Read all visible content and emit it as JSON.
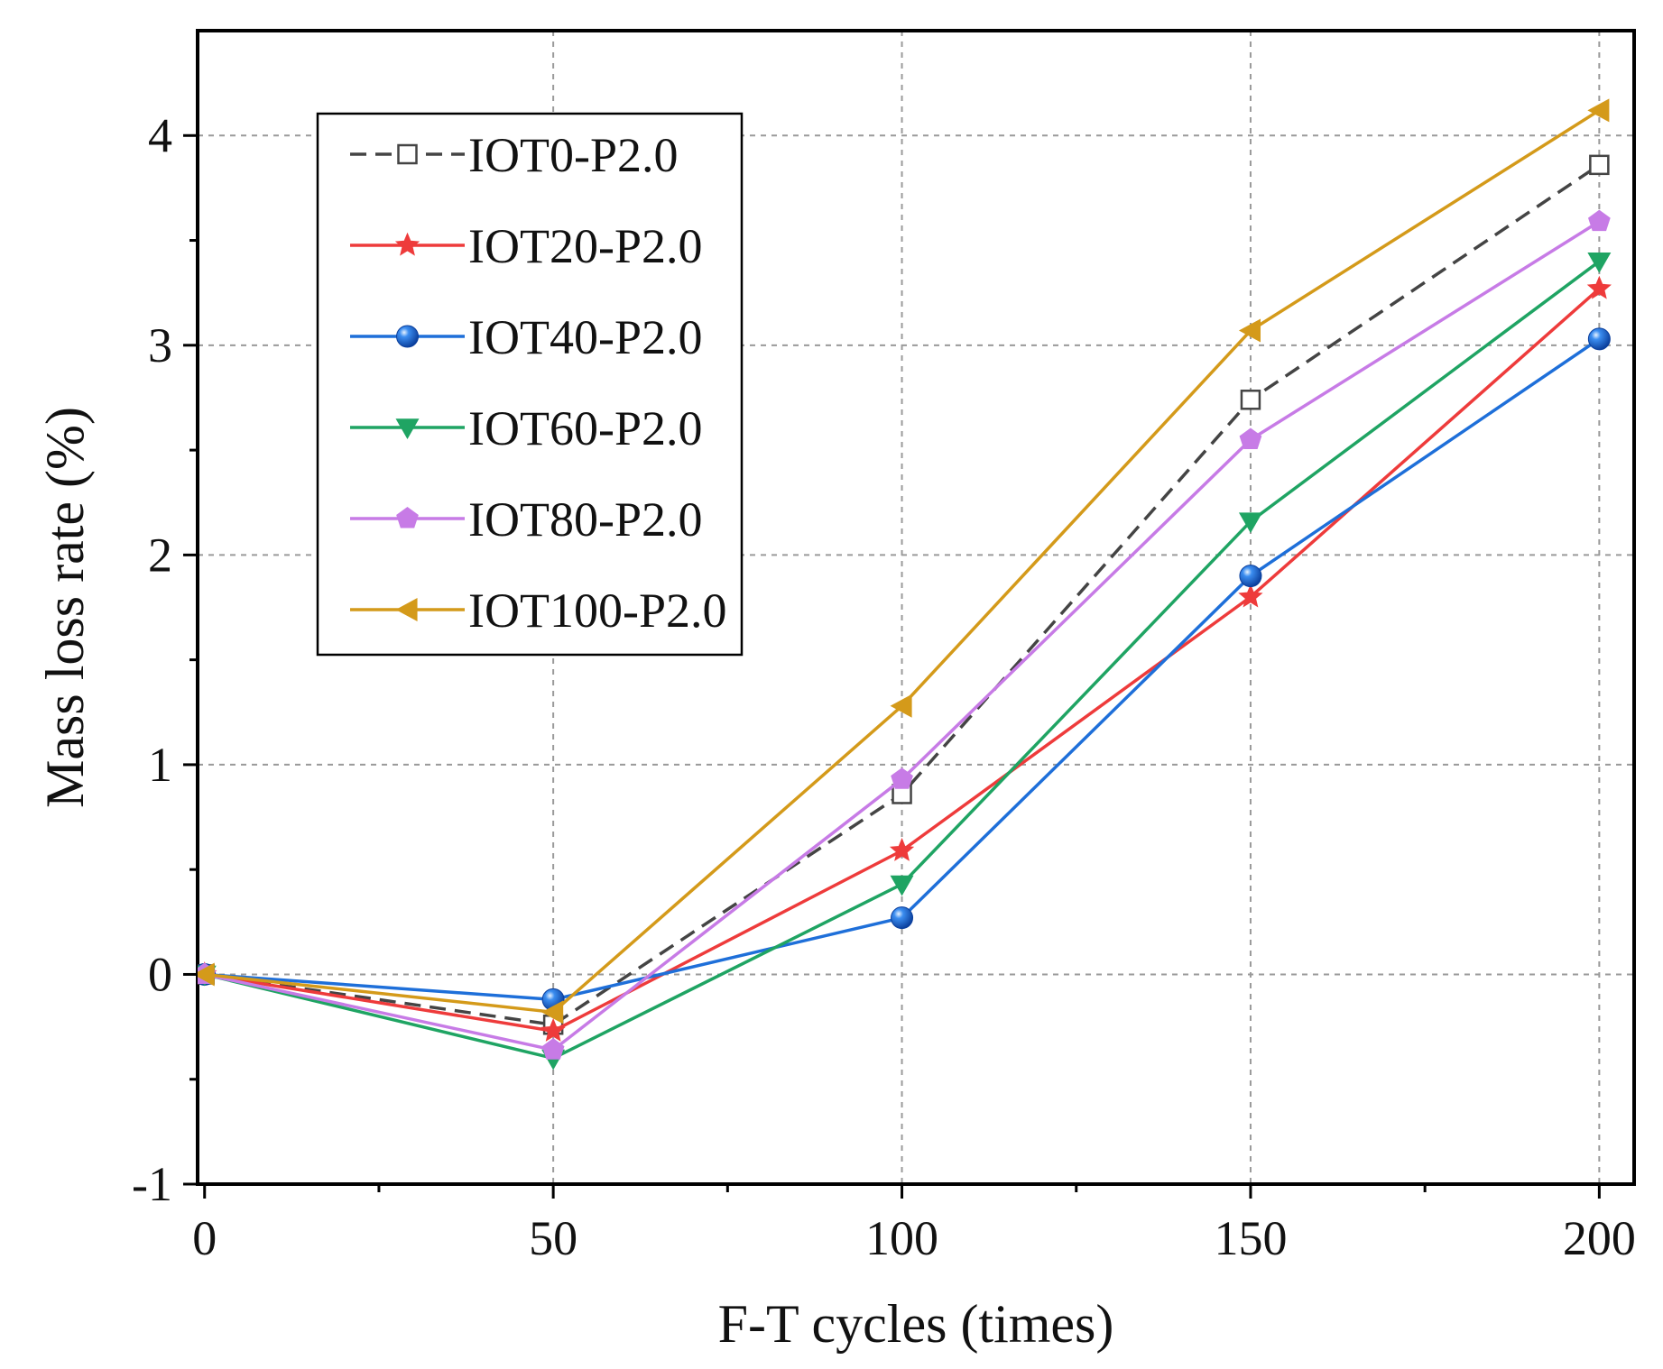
{
  "chart_data": {
    "type": "line",
    "title": "",
    "xlabel": "F-T cycles (times)",
    "ylabel": "Mass loss rate (%)",
    "x": [
      0,
      50,
      100,
      150,
      200
    ],
    "xlim": [
      -1,
      205
    ],
    "ylim": [
      -1,
      4.5
    ],
    "xticks": [
      0,
      50,
      100,
      150,
      200
    ],
    "xtick_labels": [
      "0",
      "50",
      "100",
      "150",
      "200"
    ],
    "yticks": [
      -1,
      0,
      1,
      2,
      3,
      4
    ],
    "ytick_labels": [
      "-1",
      "0",
      "1",
      "2",
      "3",
      "4"
    ],
    "grid": true,
    "legend_position": "top-left",
    "series": [
      {
        "name": "IOT0-P2.0",
        "values": [
          0,
          -0.24,
          0.86,
          2.74,
          3.86
        ],
        "color": "#444444",
        "marker": "square-open",
        "dashed": true
      },
      {
        "name": "IOT20-P2.0",
        "values": [
          0,
          -0.27,
          0.59,
          1.8,
          3.27
        ],
        "color": "#ee3b3b",
        "marker": "star",
        "dashed": false
      },
      {
        "name": "IOT40-P2.0",
        "values": [
          0,
          -0.12,
          0.27,
          1.9,
          3.03
        ],
        "color": "#1e6fd9",
        "marker": "sphere",
        "dashed": false
      },
      {
        "name": "IOT60-P2.0",
        "values": [
          0,
          -0.4,
          0.43,
          2.16,
          3.4
        ],
        "color": "#1fa463",
        "marker": "triangle-down",
        "dashed": false
      },
      {
        "name": "IOT80-P2.0",
        "values": [
          0,
          -0.36,
          0.93,
          2.55,
          3.59
        ],
        "color": "#c77be6",
        "marker": "pentagon",
        "dashed": false
      },
      {
        "name": "IOT100-P2.0",
        "values": [
          0,
          -0.18,
          1.28,
          3.07,
          4.12
        ],
        "color": "#d49a1a",
        "marker": "triangle-left",
        "dashed": false
      }
    ]
  }
}
